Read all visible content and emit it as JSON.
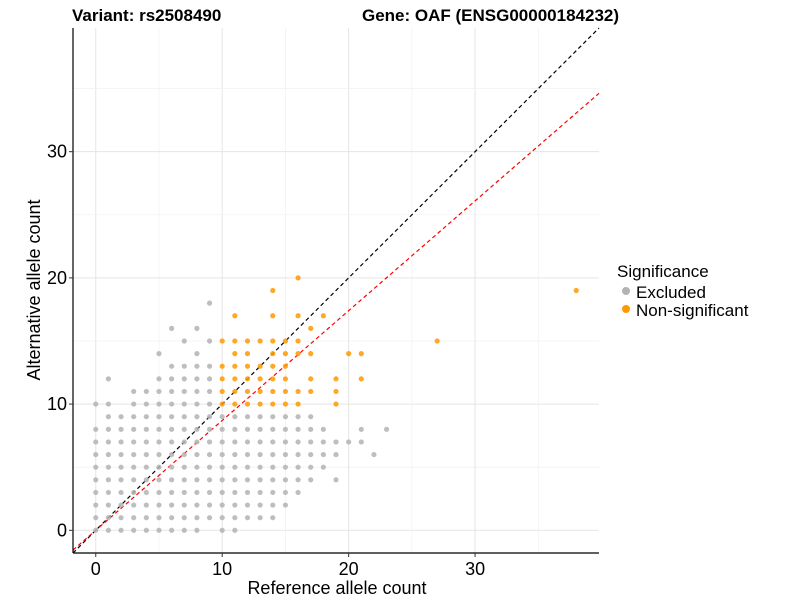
{
  "chart_data": {
    "type": "scatter",
    "title_left": "Variant: rs2508490",
    "title_right": "Gene: OAF (ENSG00000184232)",
    "xlabel": "Reference allele count",
    "ylabel": "Alternative allele count",
    "xlim": [
      -1.8,
      39.8
    ],
    "ylim": [
      -1.8,
      39.8
    ],
    "x_ticks": [
      0,
      10,
      20,
      30
    ],
    "y_ticks": [
      0,
      10,
      20,
      30
    ],
    "grid": true,
    "legend": {
      "title": "Significance",
      "position": "right",
      "entries": [
        {
          "label": "Excluded",
          "color": "#b3b3b3"
        },
        {
          "label": "Non-significant",
          "color": "#ff9900"
        }
      ]
    },
    "reference_lines": [
      {
        "slope": 1.0,
        "intercept": 0,
        "color": "#000000",
        "style": "dashed"
      },
      {
        "slope": 0.87,
        "intercept": 0,
        "color": "#ff0000",
        "style": "dashed"
      }
    ],
    "series": [
      {
        "name": "Excluded",
        "color": "#b3b3b3",
        "points": [
          [
            0,
            0
          ],
          [
            0,
            1
          ],
          [
            0,
            2
          ],
          [
            0,
            3
          ],
          [
            0,
            4
          ],
          [
            0,
            5
          ],
          [
            0,
            6
          ],
          [
            0,
            7
          ],
          [
            0,
            8
          ],
          [
            0,
            10
          ],
          [
            1,
            0
          ],
          [
            1,
            1
          ],
          [
            1,
            2
          ],
          [
            1,
            3
          ],
          [
            1,
            4
          ],
          [
            1,
            5
          ],
          [
            1,
            6
          ],
          [
            1,
            7
          ],
          [
            1,
            8
          ],
          [
            1,
            9
          ],
          [
            1,
            10
          ],
          [
            1,
            12
          ],
          [
            2,
            0
          ],
          [
            2,
            1
          ],
          [
            2,
            2
          ],
          [
            2,
            3
          ],
          [
            2,
            4
          ],
          [
            2,
            5
          ],
          [
            2,
            6
          ],
          [
            2,
            7
          ],
          [
            2,
            8
          ],
          [
            2,
            9
          ],
          [
            3,
            0
          ],
          [
            3,
            1
          ],
          [
            3,
            2
          ],
          [
            3,
            3
          ],
          [
            3,
            4
          ],
          [
            3,
            5
          ],
          [
            3,
            6
          ],
          [
            3,
            7
          ],
          [
            3,
            8
          ],
          [
            3,
            9
          ],
          [
            3,
            10
          ],
          [
            3,
            11
          ],
          [
            4,
            0
          ],
          [
            4,
            1
          ],
          [
            4,
            2
          ],
          [
            4,
            3
          ],
          [
            4,
            4
          ],
          [
            4,
            5
          ],
          [
            4,
            6
          ],
          [
            4,
            7
          ],
          [
            4,
            8
          ],
          [
            4,
            9
          ],
          [
            4,
            10
          ],
          [
            4,
            11
          ],
          [
            5,
            0
          ],
          [
            5,
            1
          ],
          [
            5,
            2
          ],
          [
            5,
            3
          ],
          [
            5,
            4
          ],
          [
            5,
            5
          ],
          [
            5,
            6
          ],
          [
            5,
            7
          ],
          [
            5,
            8
          ],
          [
            5,
            9
          ],
          [
            5,
            10
          ],
          [
            5,
            11
          ],
          [
            5,
            12
          ],
          [
            5,
            14
          ],
          [
            6,
            0
          ],
          [
            6,
            1
          ],
          [
            6,
            2
          ],
          [
            6,
            3
          ],
          [
            6,
            4
          ],
          [
            6,
            5
          ],
          [
            6,
            6
          ],
          [
            6,
            7
          ],
          [
            6,
            8
          ],
          [
            6,
            9
          ],
          [
            6,
            10
          ],
          [
            6,
            11
          ],
          [
            6,
            12
          ],
          [
            6,
            13
          ],
          [
            6,
            16
          ],
          [
            7,
            0
          ],
          [
            7,
            1
          ],
          [
            7,
            2
          ],
          [
            7,
            3
          ],
          [
            7,
            4
          ],
          [
            7,
            5
          ],
          [
            7,
            6
          ],
          [
            7,
            7
          ],
          [
            7,
            8
          ],
          [
            7,
            9
          ],
          [
            7,
            10
          ],
          [
            7,
            11
          ],
          [
            7,
            12
          ],
          [
            7,
            13
          ],
          [
            7,
            15
          ],
          [
            8,
            0
          ],
          [
            8,
            1
          ],
          [
            8,
            2
          ],
          [
            8,
            3
          ],
          [
            8,
            4
          ],
          [
            8,
            5
          ],
          [
            8,
            6
          ],
          [
            8,
            7
          ],
          [
            8,
            8
          ],
          [
            8,
            9
          ],
          [
            8,
            10
          ],
          [
            8,
            11
          ],
          [
            8,
            12
          ],
          [
            8,
            13
          ],
          [
            8,
            14
          ],
          [
            8,
            16
          ],
          [
            9,
            1
          ],
          [
            9,
            2
          ],
          [
            9,
            3
          ],
          [
            9,
            4
          ],
          [
            9,
            5
          ],
          [
            9,
            6
          ],
          [
            9,
            7
          ],
          [
            9,
            8
          ],
          [
            9,
            9
          ],
          [
            9,
            10
          ],
          [
            9,
            11
          ],
          [
            9,
            12
          ],
          [
            9,
            13
          ],
          [
            9,
            15
          ],
          [
            9,
            18
          ],
          [
            10,
            0
          ],
          [
            10,
            1
          ],
          [
            10,
            2
          ],
          [
            10,
            3
          ],
          [
            10,
            4
          ],
          [
            10,
            5
          ],
          [
            10,
            6
          ],
          [
            10,
            7
          ],
          [
            10,
            8
          ],
          [
            10,
            9
          ],
          [
            11,
            0
          ],
          [
            11,
            1
          ],
          [
            11,
            2
          ],
          [
            11,
            3
          ],
          [
            11,
            4
          ],
          [
            11,
            5
          ],
          [
            11,
            6
          ],
          [
            11,
            7
          ],
          [
            11,
            8
          ],
          [
            11,
            9
          ],
          [
            12,
            1
          ],
          [
            12,
            2
          ],
          [
            12,
            3
          ],
          [
            12,
            4
          ],
          [
            12,
            5
          ],
          [
            12,
            6
          ],
          [
            12,
            7
          ],
          [
            12,
            8
          ],
          [
            12,
            9
          ],
          [
            13,
            1
          ],
          [
            13,
            2
          ],
          [
            13,
            3
          ],
          [
            13,
            4
          ],
          [
            13,
            5
          ],
          [
            13,
            6
          ],
          [
            13,
            7
          ],
          [
            13,
            8
          ],
          [
            13,
            9
          ],
          [
            14,
            1
          ],
          [
            14,
            2
          ],
          [
            14,
            3
          ],
          [
            14,
            4
          ],
          [
            14,
            5
          ],
          [
            14,
            6
          ],
          [
            14,
            7
          ],
          [
            14,
            8
          ],
          [
            14,
            9
          ],
          [
            15,
            2
          ],
          [
            15,
            3
          ],
          [
            15,
            4
          ],
          [
            15,
            5
          ],
          [
            15,
            6
          ],
          [
            15,
            7
          ],
          [
            15,
            8
          ],
          [
            15,
            9
          ],
          [
            16,
            3
          ],
          [
            16,
            4
          ],
          [
            16,
            5
          ],
          [
            16,
            6
          ],
          [
            16,
            7
          ],
          [
            16,
            8
          ],
          [
            16,
            9
          ],
          [
            17,
            4
          ],
          [
            17,
            5
          ],
          [
            17,
            6
          ],
          [
            17,
            7
          ],
          [
            17,
            8
          ],
          [
            17,
            9
          ],
          [
            18,
            5
          ],
          [
            18,
            6
          ],
          [
            18,
            7
          ],
          [
            18,
            8
          ],
          [
            19,
            4
          ],
          [
            19,
            6
          ],
          [
            19,
            7
          ],
          [
            20,
            7
          ],
          [
            21,
            7
          ],
          [
            21,
            8
          ],
          [
            22,
            6
          ],
          [
            23,
            8
          ]
        ]
      },
      {
        "name": "Non-significant",
        "color": "#ff9900",
        "points": [
          [
            10,
            10
          ],
          [
            10,
            11
          ],
          [
            10,
            12
          ],
          [
            10,
            13
          ],
          [
            10,
            15
          ],
          [
            11,
            10
          ],
          [
            11,
            11
          ],
          [
            11,
            12
          ],
          [
            11,
            13
          ],
          [
            11,
            14
          ],
          [
            11,
            15
          ],
          [
            11,
            17
          ],
          [
            12,
            10
          ],
          [
            12,
            11
          ],
          [
            12,
            12
          ],
          [
            12,
            13
          ],
          [
            12,
            14
          ],
          [
            12,
            15
          ],
          [
            13,
            10
          ],
          [
            13,
            11
          ],
          [
            13,
            12
          ],
          [
            13,
            13
          ],
          [
            13,
            15
          ],
          [
            14,
            10
          ],
          [
            14,
            11
          ],
          [
            14,
            12
          ],
          [
            14,
            13
          ],
          [
            14,
            14
          ],
          [
            14,
            15
          ],
          [
            14,
            17
          ],
          [
            14,
            19
          ],
          [
            15,
            10
          ],
          [
            15,
            11
          ],
          [
            15,
            12
          ],
          [
            15,
            13
          ],
          [
            15,
            14
          ],
          [
            15,
            15
          ],
          [
            16,
            10
          ],
          [
            16,
            11
          ],
          [
            16,
            14
          ],
          [
            16,
            15
          ],
          [
            16,
            17
          ],
          [
            16,
            20
          ],
          [
            17,
            11
          ],
          [
            17,
            12
          ],
          [
            17,
            14
          ],
          [
            17,
            16
          ],
          [
            18,
            17
          ],
          [
            19,
            10
          ],
          [
            19,
            11
          ],
          [
            19,
            12
          ],
          [
            20,
            14
          ],
          [
            21,
            12
          ],
          [
            21,
            14
          ],
          [
            27,
            15
          ],
          [
            38,
            19
          ]
        ]
      }
    ]
  }
}
